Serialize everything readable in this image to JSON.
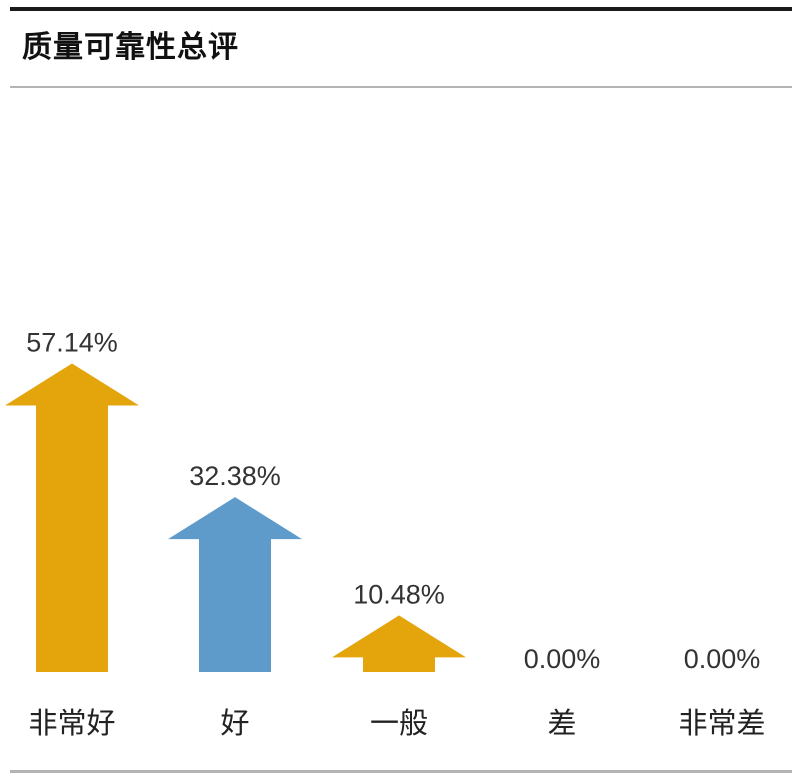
{
  "title": "质量可靠性总评",
  "colors": {
    "gold": "#E3A40C",
    "blue": "#5E9BCB"
  },
  "chart_data": {
    "type": "bar",
    "title": "质量可靠性总评",
    "categories": [
      "非常好",
      "好",
      "一般",
      "差",
      "非常差"
    ],
    "values": [
      57.14,
      32.38,
      10.48,
      0.0,
      0.0
    ],
    "value_labels": [
      "57.14%",
      "32.38%",
      "10.48%",
      "0.00%",
      "0.00%"
    ],
    "bar_colors": [
      "#E3A40C",
      "#5E9BCB",
      "#E3A40C",
      "#E3A40C",
      "#E3A40C"
    ],
    "bar_shape": "arrow",
    "xlabel": "",
    "ylabel": "",
    "ylim": [
      0,
      60
    ],
    "grid": false,
    "legend": "none"
  }
}
